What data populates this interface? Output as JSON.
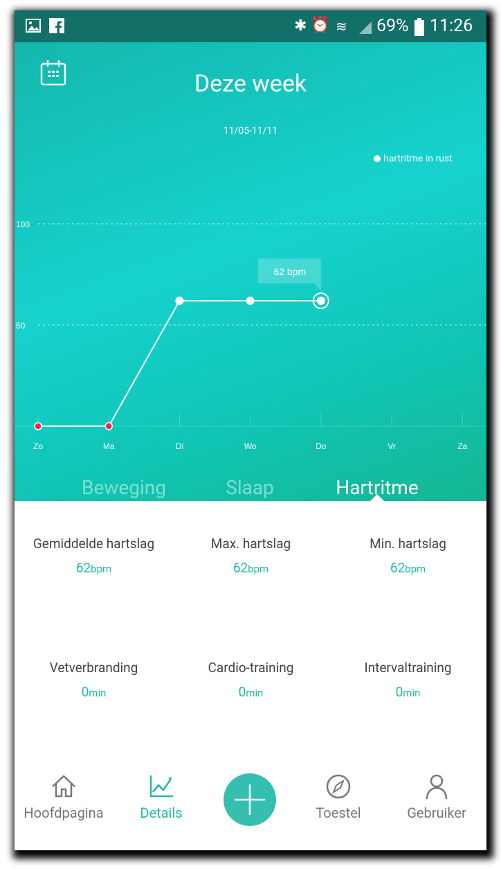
{
  "status_bar": {
    "battery": "69%",
    "time": "11:26",
    "icons": [
      "image-icon",
      "facebook-icon",
      "bluetooth-icon",
      "alarm-icon",
      "wifi-icon",
      "signal-icon",
      "battery-icon"
    ]
  },
  "header": {
    "title": "Deze week",
    "date_range": "11/05-11/11",
    "calendar_icon": "calendar-icon"
  },
  "chart_data": {
    "type": "line",
    "categories": [
      "Zo",
      "Ma",
      "Di",
      "Wo",
      "Do",
      "Vr",
      "Za"
    ],
    "series": [
      {
        "name": "hartritme in rust",
        "values": [
          0,
          0,
          62,
          62,
          62,
          null,
          null
        ]
      }
    ],
    "ylim": [
      0,
      100
    ],
    "yticks": [
      "100",
      "50"
    ],
    "grid": "dashed horizontal",
    "legend": "top-right",
    "tooltip": {
      "category": "Do",
      "text": "62 bpm"
    },
    "zero_point_color": "#e8284f",
    "line_color": "#ffffff"
  },
  "tabs": [
    {
      "label": "Beweging",
      "active": false
    },
    {
      "label": "Slaap",
      "active": false
    },
    {
      "label": "Hartritme",
      "active": true
    }
  ],
  "stats": [
    {
      "label": "Gemiddelde hartslag",
      "value": "62",
      "unit": "bpm"
    },
    {
      "label": "Max. hartslag",
      "value": "62",
      "unit": "bpm"
    },
    {
      "label": "Min. hartslag",
      "value": "62",
      "unit": "bpm"
    },
    {
      "label": "Vetverbranding",
      "value": "0",
      "unit": "min"
    },
    {
      "label": "Cardio-training",
      "value": "0",
      "unit": "min"
    },
    {
      "label": "Intervaltraining",
      "value": "0",
      "unit": "min"
    }
  ],
  "nav": [
    {
      "label": "Hoofdpagina",
      "icon": "home-icon"
    },
    {
      "label": "Details",
      "icon": "chart-icon",
      "active": true
    },
    {
      "label": "",
      "icon": "plus-icon"
    },
    {
      "label": "Toestel",
      "icon": "compass-icon"
    },
    {
      "label": "Gebruiker",
      "icon": "user-icon"
    }
  ],
  "colors": {
    "accent": "#21b9a9",
    "status_bar": "#137069"
  }
}
